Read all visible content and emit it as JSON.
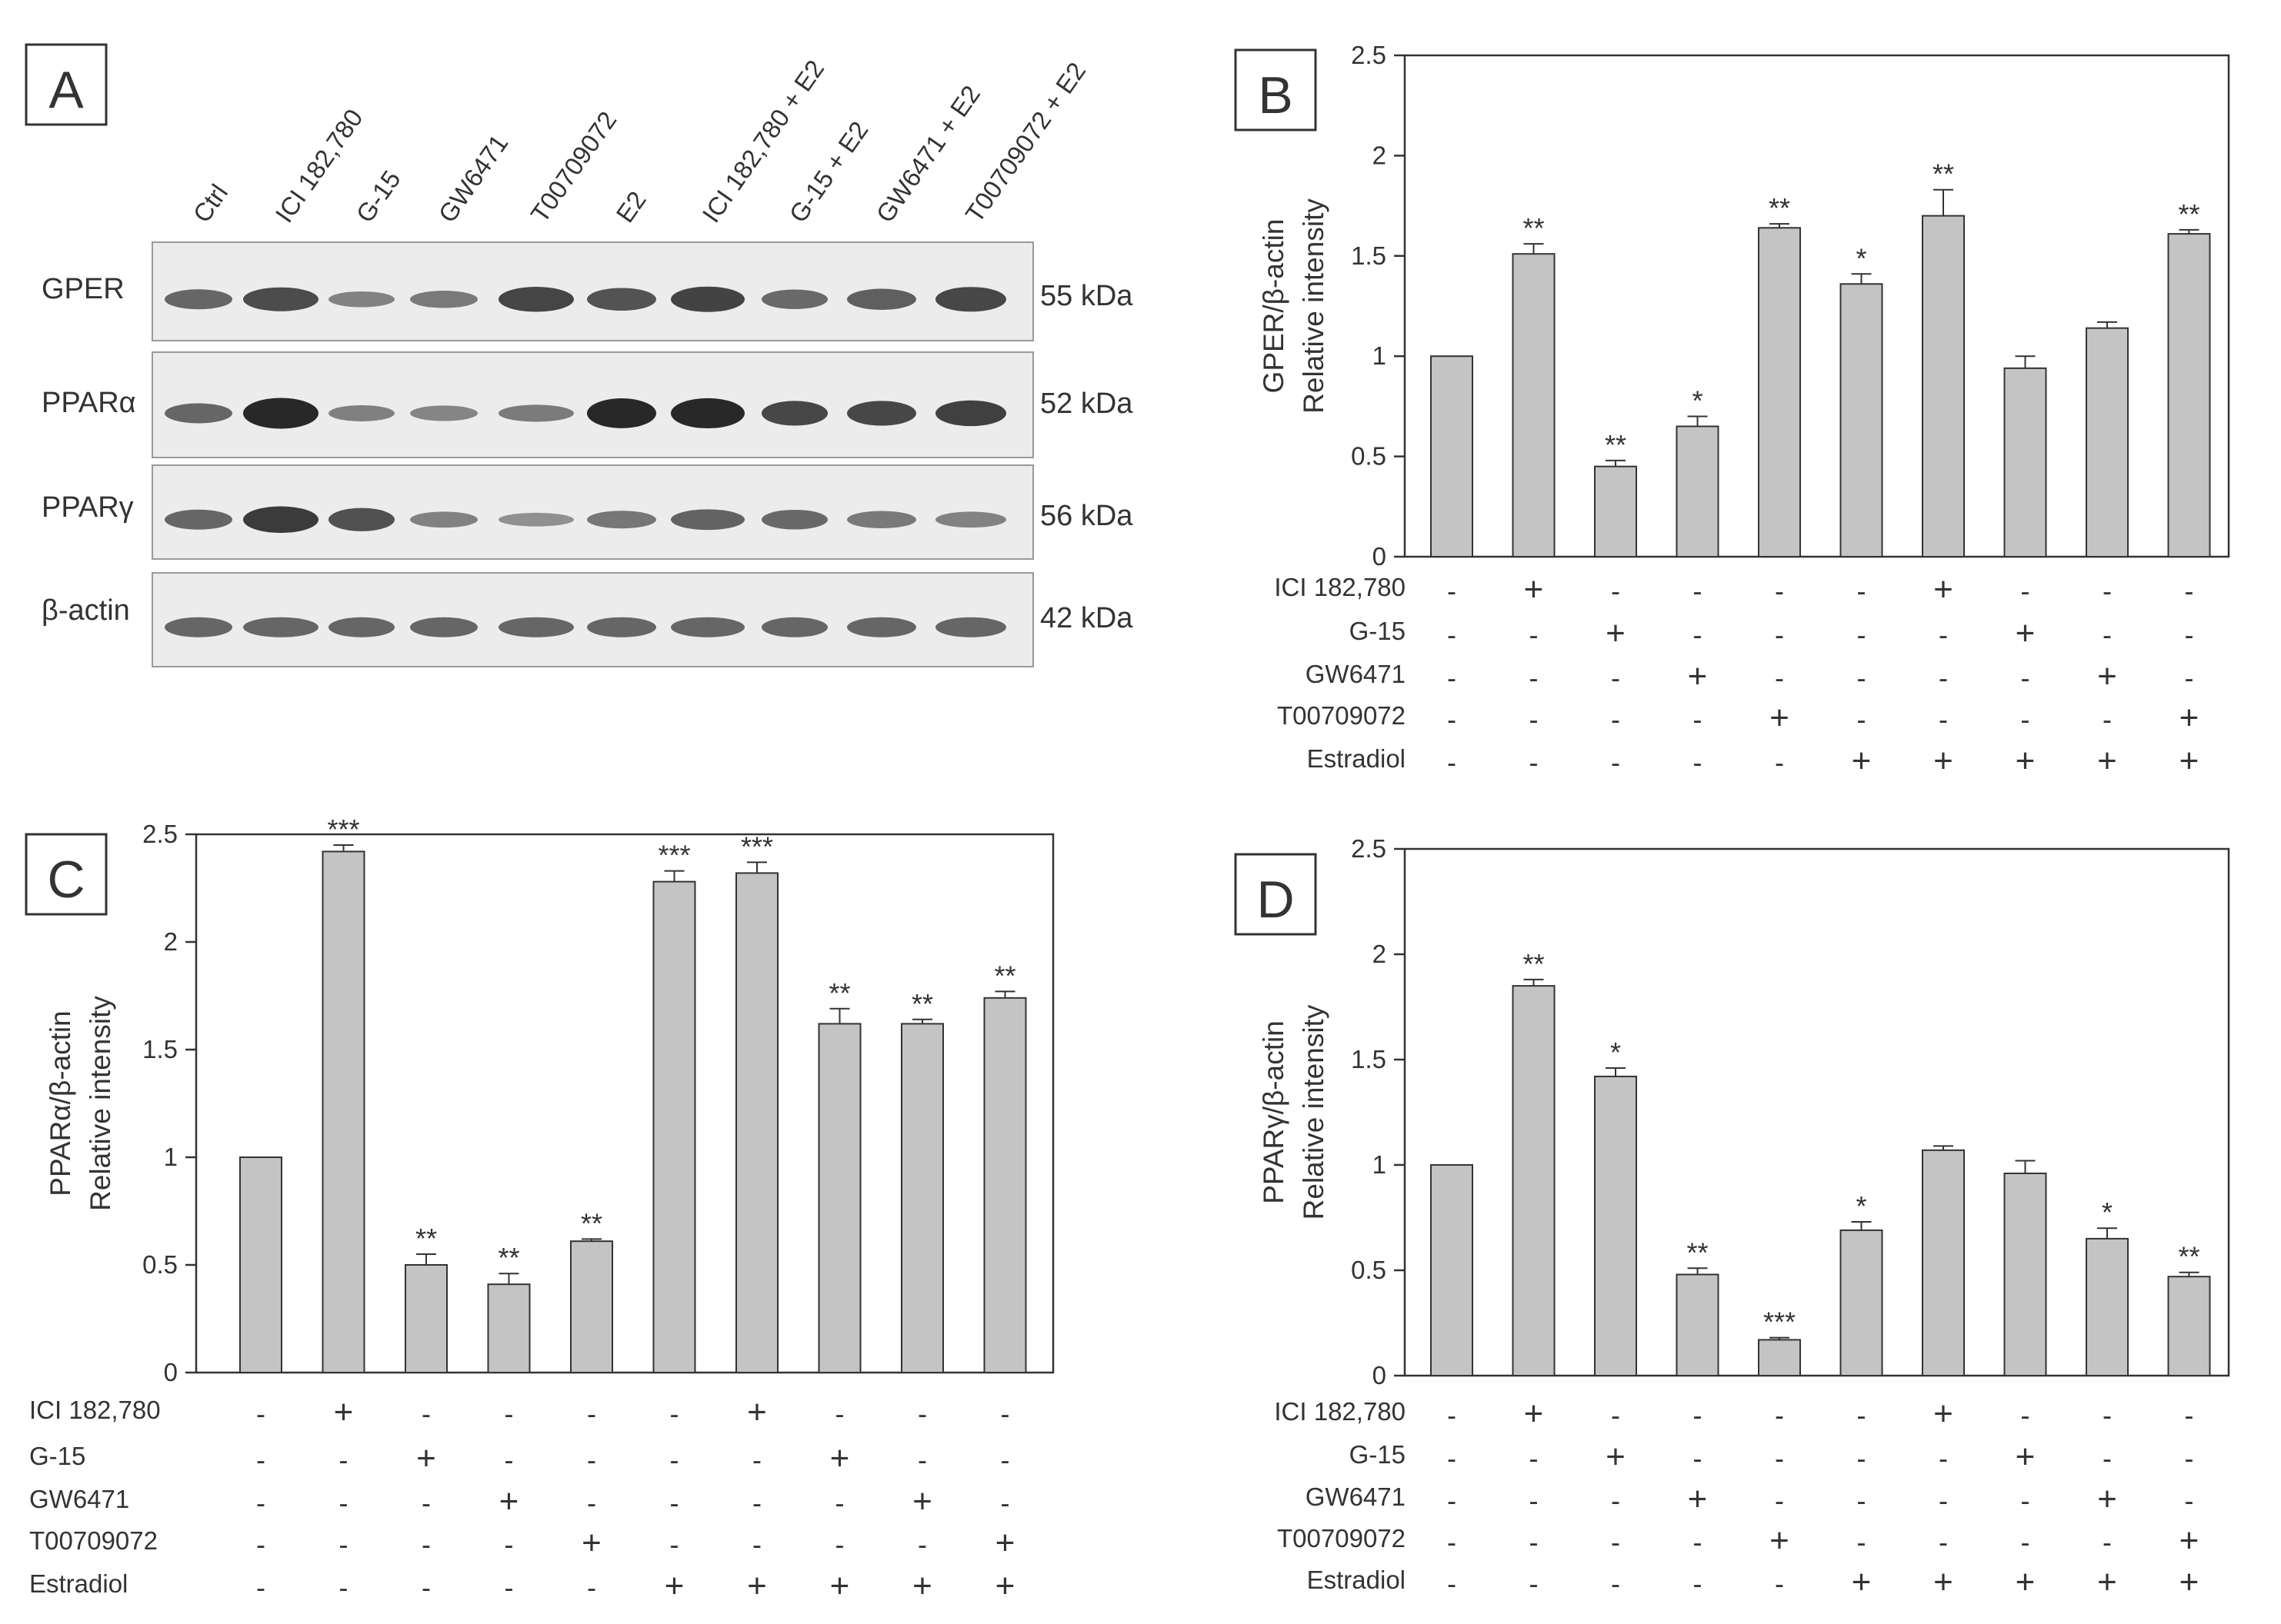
{
  "figure": {
    "treatments": [
      "ICI 182,780",
      "G-15",
      "GW6471",
      "T00709072",
      "Estradiol"
    ],
    "treatment_matrix": [
      [
        "-",
        "+",
        "-",
        "-",
        "-",
        "-",
        "+",
        "-",
        "-",
        "-"
      ],
      [
        "-",
        "-",
        "+",
        "-",
        "-",
        "-",
        "-",
        "+",
        "-",
        "-"
      ],
      [
        "-",
        "-",
        "-",
        "+",
        "-",
        "-",
        "-",
        "-",
        "+",
        "-"
      ],
      [
        "-",
        "-",
        "-",
        "-",
        "+",
        "-",
        "-",
        "-",
        "-",
        "+"
      ],
      [
        "-",
        "-",
        "-",
        "-",
        "-",
        "+",
        "+",
        "+",
        "+",
        "+"
      ]
    ]
  },
  "blot": {
    "panel_label": "A",
    "lanes": [
      "Ctrl",
      "ICI 182,780",
      "G-15",
      "GW6471",
      "T00709072",
      "E2",
      "ICI 182,780 + E2",
      "G-15 + E2",
      "GW6471 + E2",
      "T00709072 + E2"
    ],
    "rows": [
      {
        "protein": "GPER",
        "size": "55 kDa",
        "intensity": [
          1.0,
          1.5,
          0.45,
          0.65,
          1.64,
          1.36,
          1.7,
          0.94,
          1.14,
          1.61
        ]
      },
      {
        "protein": "PPARα",
        "size": "52 kDa",
        "intensity": [
          1.0,
          2.42,
          0.5,
          0.41,
          0.61,
          2.28,
          2.32,
          1.62,
          1.62,
          1.74
        ]
      },
      {
        "protein": "PPARγ",
        "size": "56 kDa",
        "intensity": [
          1.0,
          1.85,
          1.42,
          0.48,
          0.17,
          0.69,
          1.07,
          0.96,
          0.65,
          0.47
        ]
      },
      {
        "protein": "β-actin",
        "size": "42 kDa",
        "intensity": [
          1.0,
          1.0,
          1.0,
          1.0,
          1.0,
          1.0,
          1.0,
          1.0,
          1.0,
          1.0
        ]
      }
    ]
  },
  "chart_data": [
    {
      "panel": "B",
      "type": "bar",
      "ylabel_line1": "GPER/β-actin",
      "ylabel_line2": "Relative intensity",
      "ylim": [
        0,
        2.5
      ],
      "yticks": [
        "0",
        "0.5",
        "1",
        "1.5",
        "2",
        "2.5"
      ],
      "categories": [
        "Ctrl",
        "ICI 182,780",
        "G-15",
        "GW6471",
        "T00709072",
        "E2",
        "ICI 182,780 + E2",
        "G-15 + E2",
        "GW6471 + E2",
        "T00709072 + E2"
      ],
      "values": [
        1.0,
        1.51,
        0.45,
        0.65,
        1.64,
        1.36,
        1.7,
        0.94,
        1.14,
        1.61
      ],
      "errors": [
        0,
        0.05,
        0.03,
        0.05,
        0.02,
        0.05,
        0.13,
        0.06,
        0.03,
        0.02
      ],
      "significance": [
        "",
        "**",
        "**",
        "*",
        "**",
        "*",
        "**",
        "",
        "",
        "**"
      ]
    },
    {
      "panel": "C",
      "type": "bar",
      "ylabel_line1": "PPARα/β-actin",
      "ylabel_line2": "Relative intensity",
      "ylim": [
        0,
        2.5
      ],
      "yticks": [
        "0",
        "0.5",
        "1",
        "1.5",
        "2",
        "2.5"
      ],
      "categories": [
        "Ctrl",
        "ICI 182,780",
        "G-15",
        "GW6471",
        "T00709072",
        "E2",
        "ICI 182,780 + E2",
        "G-15 + E2",
        "GW6471 + E2",
        "T00709072 + E2"
      ],
      "values": [
        1.0,
        2.42,
        0.5,
        0.41,
        0.61,
        2.28,
        2.32,
        1.62,
        1.62,
        1.74
      ],
      "errors": [
        0,
        0.03,
        0.05,
        0.05,
        0.01,
        0.05,
        0.05,
        0.07,
        0.02,
        0.03
      ],
      "significance": [
        "",
        "***",
        "**",
        "**",
        "**",
        "***",
        "***",
        "**",
        "**",
        "**"
      ]
    },
    {
      "panel": "D",
      "type": "bar",
      "ylabel_line1": "PPARγ/β-actin",
      "ylabel_line2": "Relative intensity",
      "ylim": [
        0,
        2.5
      ],
      "yticks": [
        "0",
        "0.5",
        "1",
        "1.5",
        "2",
        "2.5"
      ],
      "categories": [
        "Ctrl",
        "ICI 182,780",
        "G-15",
        "GW6471",
        "T00709072",
        "E2",
        "ICI 182,780 + E2",
        "G-15 + E2",
        "GW6471 + E2",
        "T00709072 + E2"
      ],
      "values": [
        1.0,
        1.85,
        1.42,
        0.48,
        0.17,
        0.69,
        1.07,
        0.96,
        0.65,
        0.47
      ],
      "errors": [
        0,
        0.03,
        0.04,
        0.03,
        0.01,
        0.04,
        0.02,
        0.06,
        0.05,
        0.02
      ],
      "significance": [
        "",
        "**",
        "*",
        "**",
        "***",
        "*",
        "",
        "",
        "*",
        "**"
      ]
    }
  ]
}
